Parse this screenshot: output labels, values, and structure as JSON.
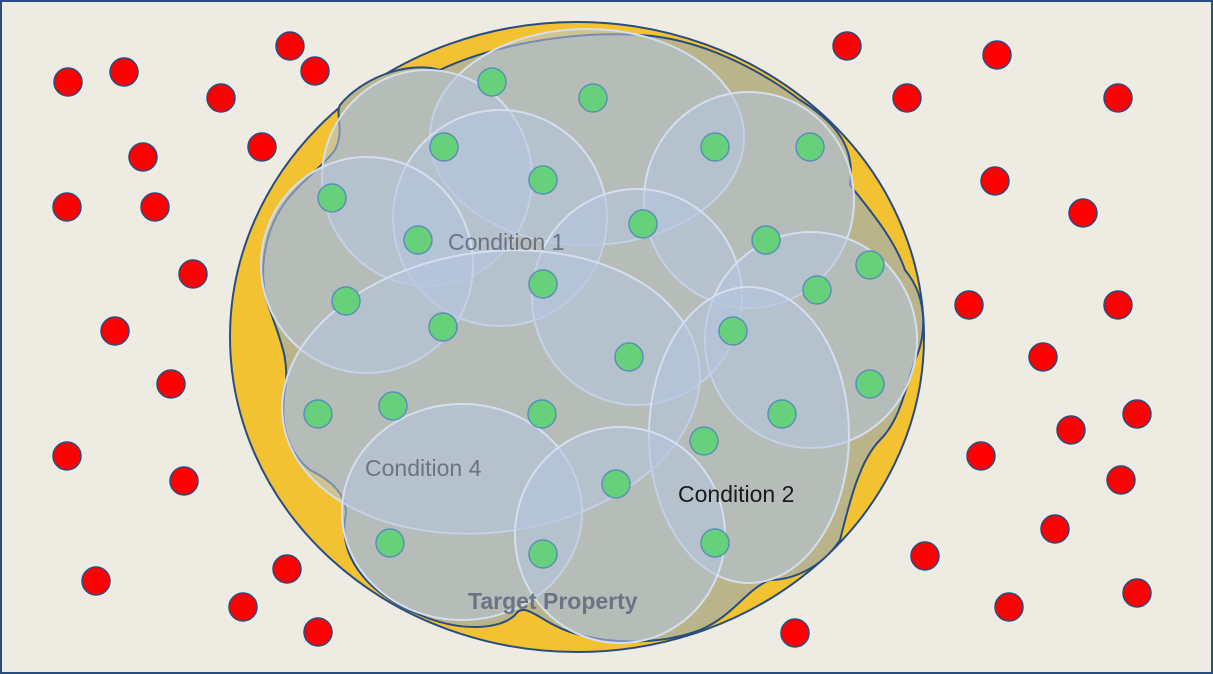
{
  "labels": {
    "condition_1": "Condition 1",
    "condition_2": "Condition 2",
    "condition_4": "Condition 4",
    "target_property": "Target Property"
  },
  "colors": {
    "background": "#eeece2",
    "frame": "#2a4d80",
    "target_fill": "#f2c232",
    "target_stroke": "#2a4d80",
    "region_fill": "#b9b48a",
    "ellipse_fill": "#b5c4df",
    "ellipse_stroke": "#d4deef",
    "positive_dot": "#66d17a",
    "negative_dot": "#ff0000",
    "label_text": "#6b7485",
    "label_text_dark": "#1a1a1a"
  }
}
